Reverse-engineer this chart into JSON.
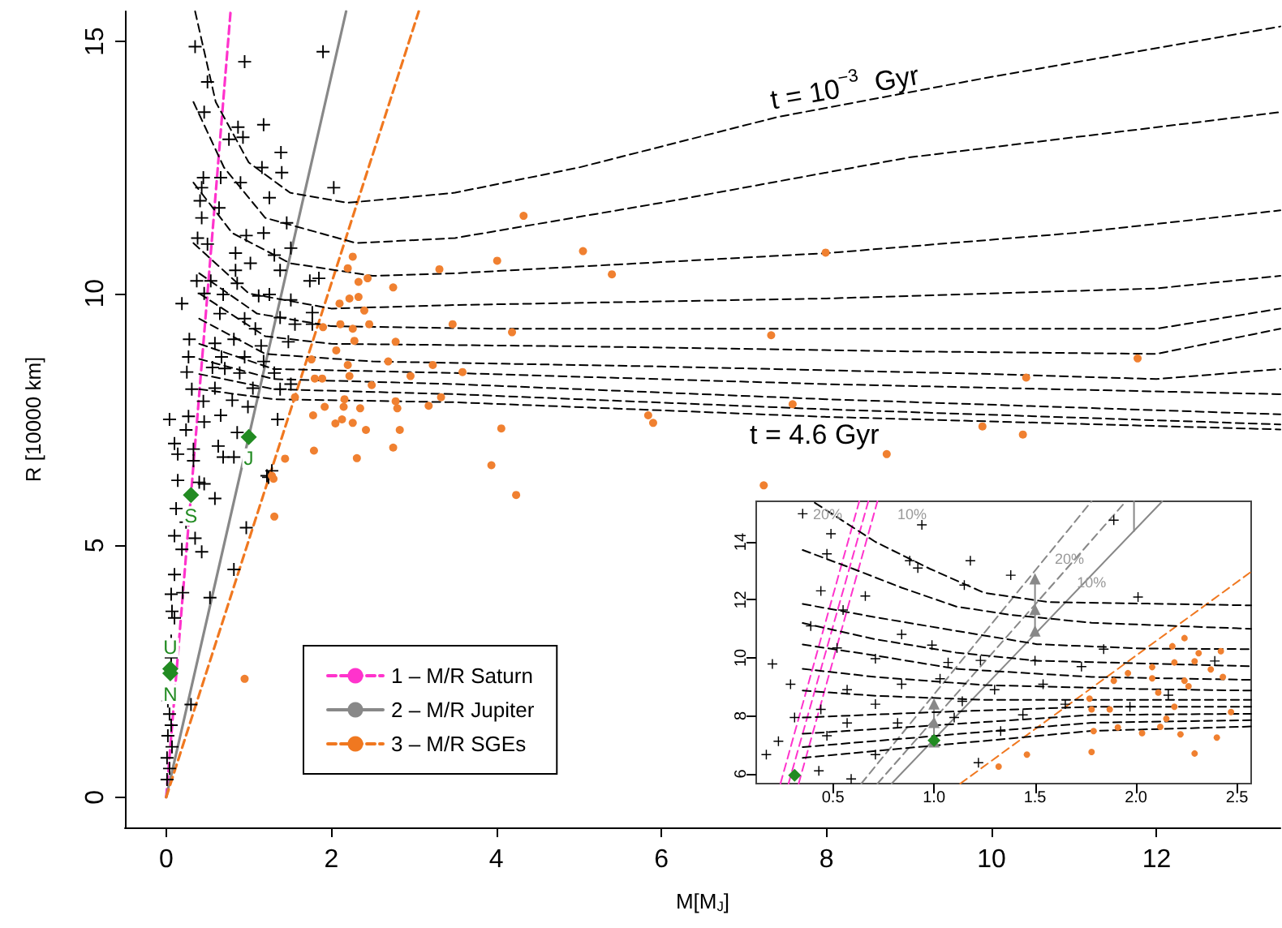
{
  "chart_data": [
    {
      "type": "scatter",
      "xlabel": "M[M$_{J}$]",
      "ylabel": "R [10000 km]",
      "xlim": [
        -0.5,
        13.5
      ],
      "ylim": [
        -0.6,
        15.6
      ],
      "xticks": [
        0,
        2,
        4,
        6,
        8,
        10,
        12
      ],
      "yticks": [
        0,
        5,
        10,
        15
      ],
      "legend": "bottom left",
      "annotations": [
        "t = 10$^{−3}$  Gyr",
        "t = 4.6 Gyr"
      ],
      "series": [
        {
          "color": "#000000",
          "marker": "cross",
          "x": [
            0.35,
            0.95,
            0.5,
            1.9,
            0.46,
            0.87,
            1.18,
            0.76,
            0.93,
            1.39,
            1.16,
            1.4,
            0.45,
            0.9,
            0.43,
            0.66,
            2.03,
            0.41,
            1.25,
            0.64,
            0.43,
            1.46,
            0.97,
            1.18,
            0.38,
            0.5,
            0.84,
            1.31,
            1.51,
            1.02,
            0.84,
            1.38,
            1.74,
            1.85,
            0.37,
            0.54,
            0.86,
            0.19,
            0.46,
            0.69,
            1.12,
            1.25,
            1.51,
            0.65,
            0.95,
            1.08,
            1.38,
            1.56,
            1.77,
            1.77,
            0.28,
            0.59,
            0.82,
            1.15,
            1.48,
            0.27,
            0.67,
            0.95,
            1.18,
            0.25,
            0.56,
            0.71,
            0.89,
            1.31,
            1.51,
            0.31,
            0.59,
            1.05,
            1.38,
            0.45,
            0.8,
            0.99,
            0.04,
            0.27,
            0.66,
            0.46,
            1.35,
            0.24,
            0.86,
            0.1,
            0.33,
            0.63,
            0.69,
            0.82,
            0.14,
            1.22,
            0.14,
            0.4,
            0.33,
            0.46,
            0.59,
            0.12,
            0.24,
            0.35,
            0.1,
            0.43,
            0.19,
            0.1,
            0.06,
            0.2,
            0.53,
            0.07,
            0.1,
            0.06,
            0.97,
            0.82,
            0.06,
            0.02,
            0.04,
            0.06,
            0.02,
            0.07,
            0.01,
            0.04,
            0.01,
            0.3,
            1.28,
            1.24
          ],
          "values": [
            14.9,
            14.6,
            14.2,
            14.8,
            13.6,
            13.3,
            13.35,
            13.06,
            13.1,
            12.8,
            12.5,
            12.4,
            12.3,
            12.2,
            12.1,
            12.3,
            12.1,
            11.84,
            11.9,
            11.7,
            11.5,
            11.4,
            11.15,
            11.2,
            11.1,
            10.98,
            10.8,
            10.76,
            10.9,
            10.6,
            10.46,
            10.46,
            10.25,
            10.3,
            10.25,
            10.25,
            10.2,
            9.8,
            10.0,
            9.98,
            9.95,
            9.98,
            9.87,
            9.6,
            9.5,
            9.3,
            9.52,
            9.39,
            9.62,
            9.39,
            9.09,
            9.01,
            9.09,
            8.96,
            9.04,
            8.74,
            8.74,
            8.74,
            8.65,
            8.44,
            8.53,
            8.51,
            8.42,
            8.42,
            8.2,
            8.1,
            8.12,
            8.12,
            8.1,
            7.86,
            7.88,
            7.75,
            7.5,
            7.56,
            7.58,
            7.45,
            7.5,
            7.29,
            7.24,
            7.02,
            6.91,
            6.97,
            6.75,
            6.75,
            6.81,
            6.38,
            6.29,
            6.25,
            6.68,
            6.22,
            5.93,
            5.73,
            5.46,
            5.14,
            5.19,
            4.87,
            4.92,
            4.42,
            4.03,
            4.06,
            3.96,
            3.69,
            3.56,
            3.1,
            5.35,
            4.52,
            2.77,
            1.91,
            1.65,
            1.43,
            1.22,
            1.0,
            0.78,
            0.57,
            0.35,
            1.84,
            6.48,
            6.35
          ]
        },
        {
          "color": "#f08030",
          "marker": "circle",
          "x": [
            2.26,
            2.2,
            3.31,
            2.33,
            2.44,
            2.75,
            2.1,
            2.22,
            2.33,
            2.4,
            1.9,
            2.11,
            2.26,
            2.46,
            2.28,
            2.78,
            3.47,
            2.06,
            1.76,
            2.2,
            2.69,
            3.23,
            3.59,
            1.8,
            1.89,
            2.22,
            2.49,
            2.96,
            2.16,
            2.78,
            3.33,
            1.56,
            1.92,
            2.15,
            2.35,
            2.8,
            3.18,
            1.78,
            2.13,
            2.05,
            2.26,
            2.42,
            2.83,
            1.79,
            2.31,
            2.75,
            1.44,
            1.28,
            1.31,
            0.95,
            1.3,
            4.33,
            4.01,
            5.05,
            5.4,
            7.99,
            4.19,
            7.33,
            11.77,
            10.42,
            7.59,
            5.84,
            5.9,
            4.06,
            9.89,
            10.38,
            8.73,
            3.94,
            4.24,
            7.24
          ],
          "values": [
            10.73,
            10.5,
            10.48,
            10.23,
            10.3,
            10.12,
            9.8,
            9.9,
            9.93,
            9.66,
            9.33,
            9.39,
            9.3,
            9.39,
            9.06,
            9.04,
            9.39,
            8.87,
            8.69,
            8.58,
            8.65,
            8.58,
            8.44,
            8.31,
            8.31,
            8.36,
            8.18,
            8.36,
            7.9,
            7.86,
            7.94,
            7.94,
            7.75,
            7.75,
            7.72,
            7.72,
            7.77,
            7.58,
            7.5,
            7.42,
            7.43,
            7.29,
            7.29,
            6.88,
            6.73,
            6.94,
            6.72,
            6.38,
            5.57,
            2.35,
            6.32,
            11.54,
            10.65,
            10.84,
            10.38,
            10.81,
            9.23,
            9.17,
            8.71,
            8.33,
            7.8,
            7.58,
            7.43,
            7.32,
            7.36,
            7.2,
            6.81,
            6.59,
            6.0,
            6.19
          ]
        },
        {
          "color": "#228b22",
          "marker": "diamond",
          "x": [
            0.05,
            0.05,
            0.3,
            1.0
          ],
          "values": [
            2.55,
            2.46,
            6.0,
            7.15
          ],
          "value_labels": [
            "U",
            "N",
            "S",
            "J"
          ]
        },
        {
          "type": "line",
          "name": "1 – M/R Saturn",
          "color": "#ff33cc",
          "line_style": "dashed",
          "x": [
            0,
            0.78
          ],
          "values": [
            0,
            15.6
          ]
        },
        {
          "type": "line",
          "name": "2 – M/R Jupiter",
          "color": "#888888",
          "line_style": "solid",
          "x": [
            0,
            2.18
          ],
          "values": [
            0,
            15.6
          ]
        },
        {
          "type": "line",
          "name": "3 – M/R SGEs",
          "color": "#f07820",
          "line_style": "dashed",
          "x": [
            0,
            3.06
          ],
          "values": [
            0,
            15.6
          ]
        },
        {
          "type": "line",
          "color": "#000000",
          "line_style": "dashed",
          "x": [
            0.35,
            0.6,
            1.0,
            1.5,
            2.2,
            3.5,
            5,
            7.4,
            10,
            13.5
          ],
          "values": [
            15.6,
            13.8,
            12.6,
            12.0,
            11.8,
            12.0,
            12.5,
            13.5,
            14.3,
            15.3
          ]
        },
        {
          "type": "line",
          "color": "#000000",
          "line_style": "dashed",
          "x": [
            0.33,
            0.7,
            1.2,
            2.3,
            3.5,
            6,
            9,
            13.5
          ],
          "values": [
            13.8,
            12.5,
            11.5,
            11.0,
            11.1,
            11.8,
            12.7,
            13.6
          ]
        },
        {
          "type": "line",
          "color": "#000000",
          "line_style": "dashed",
          "x": [
            0.33,
            0.8,
            1.5,
            2.5,
            3.5,
            8,
            11,
            13.5
          ],
          "values": [
            12.2,
            11.2,
            10.6,
            10.35,
            10.4,
            10.8,
            11.2,
            11.65
          ]
        },
        {
          "type": "line",
          "color": "#000000",
          "line_style": "dashed",
          "x": [
            0.33,
            1.0,
            2,
            3.5,
            8,
            12,
            13.5
          ],
          "values": [
            11.0,
            10.0,
            9.7,
            9.77,
            9.9,
            10.1,
            10.35
          ]
        },
        {
          "type": "line",
          "color": "#000000",
          "line_style": "dashed",
          "x": [
            0.4,
            1.1,
            2,
            4,
            8,
            12,
            13.5
          ],
          "values": [
            10.4,
            9.6,
            9.35,
            9.3,
            9.3,
            9.3,
            9.7
          ]
        },
        {
          "type": "line",
          "color": "#000000",
          "line_style": "dashed",
          "x": [
            0.4,
            1.2,
            2,
            5,
            9,
            12,
            13.5
          ],
          "values": [
            10.0,
            9.15,
            9.0,
            8.95,
            8.85,
            8.8,
            9.3
          ]
        },
        {
          "type": "line",
          "color": "#000000",
          "line_style": "dashed",
          "x": [
            0.4,
            1.2,
            2.5,
            6,
            10,
            12,
            13.5
          ],
          "values": [
            9.5,
            8.8,
            8.65,
            8.55,
            8.4,
            8.3,
            8.5
          ]
        },
        {
          "type": "line",
          "color": "#000000",
          "line_style": "dashed",
          "x": [
            0.4,
            1.3,
            3.5,
            8,
            13.5
          ],
          "values": [
            9.0,
            8.5,
            8.42,
            8.2,
            8.0
          ]
        },
        {
          "type": "line",
          "color": "#000000",
          "line_style": "dashed",
          "x": [
            0.4,
            1.3,
            3.5,
            8,
            13.5
          ],
          "values": [
            8.7,
            8.3,
            8.2,
            7.9,
            7.6
          ]
        },
        {
          "type": "line",
          "color": "#000000",
          "line_style": "dashed",
          "x": [
            0.4,
            1.3,
            3.5,
            8,
            13.5
          ],
          "values": [
            8.4,
            8.1,
            8.0,
            7.7,
            7.4
          ]
        },
        {
          "type": "line",
          "color": "#000000",
          "line_style": "dashed",
          "x": [
            0.4,
            1.3,
            3.5,
            8,
            13.5
          ],
          "values": [
            8.1,
            7.9,
            7.84,
            7.55,
            7.3
          ]
        }
      ]
    },
    {
      "type": "scatter",
      "xlim": [
        0.12,
        2.57
      ],
      "ylim": [
        5.66,
        15.4
      ],
      "xticks": [
        0.5,
        {
          "value": 1,
          "label": "1.0"
        },
        1.5,
        {
          "value": 2,
          "label": "2.0"
        },
        2.5
      ],
      "yticks": [
        6,
        8,
        10,
        12,
        14
      ],
      "annotations": [
        {
          "text": "20%",
          "x": 1.67,
          "y": 13.4
        },
        {
          "text": "10%",
          "x": 1.78,
          "y": 12.6
        },
        "20%",
        "10%"
      ],
      "series": [
        {
          "color": "#000000",
          "marker": "cross",
          "x": [
            0.35,
            0.94,
            0.49,
            0.47,
            0.88,
            0.92,
            1.18,
            1.38,
            1.15,
            2.01,
            1.89,
            0.44,
            0.55,
            0.39,
            0.66,
            0.84,
            0.99,
            0.52,
            0.71,
            1.07,
            1.23,
            0.2,
            1.73,
            1.84,
            1.5,
            0.29,
            0.84,
            1.03,
            1.3,
            0.57,
            1.54,
            0.44,
            0.71,
            1.14,
            1.44,
            0.31,
            0.57,
            0.82,
            1.33,
            0.23,
            0.47,
            0.71,
            0.17,
            0.43,
            0.59,
            1.22,
            1.97,
            1.65,
            2.16,
            2.39,
            1.1
          ],
          "values": [
            14.97,
            14.59,
            14.28,
            13.59,
            13.35,
            13.1,
            13.35,
            12.85,
            12.51,
            12.1,
            14.75,
            12.31,
            11.65,
            11.1,
            12.13,
            10.81,
            10.44,
            10.34,
            9.97,
            9.84,
            9.91,
            9.79,
            9.7,
            10.3,
            9.9,
            9.09,
            9.09,
            9.28,
            8.9,
            8.9,
            9.09,
            8.22,
            8.4,
            8.5,
            8.03,
            7.94,
            7.75,
            7.75,
            7.47,
            7.12,
            7.31,
            6.66,
            6.66,
            6.1,
            5.82,
            6.38,
            8.31,
            8.4,
            8.71,
            9.89,
            7.94
          ]
        },
        {
          "color": "#f08030",
          "marker": "circle",
          "x": [
            1.32,
            1.46,
            1.77,
            1.79,
            1.78,
            1.78,
            1.87,
            1.89,
            1.91,
            1.96,
            2.03,
            2.08,
            2.08,
            2.12,
            2.11,
            2.15,
            2.18,
            2.19,
            2.19,
            2.22,
            2.24,
            2.24,
            2.26,
            2.29,
            2.29,
            2.31,
            2.37,
            2.4,
            2.42,
            2.43,
            2.47
          ],
          "values": [
            6.25,
            6.66,
            8.59,
            7.47,
            8.22,
            6.75,
            8.22,
            9.21,
            7.6,
            9.47,
            7.4,
            9.68,
            9.29,
            7.62,
            8.8,
            7.9,
            10.4,
            9.84,
            8.31,
            7.36,
            10.68,
            9.21,
            9.02,
            6.7,
            9.88,
            10.16,
            9.6,
            7.25,
            10.23,
            9.34,
            8.13
          ]
        },
        {
          "color": "#228b22",
          "marker": "diamond",
          "x": [
            0.31,
            1.0
          ],
          "values": [
            5.95,
            7.15
          ]
        },
        {
          "type": "line",
          "color": "#ff33cc",
          "line_style": "dashed",
          "x": [
            0.24,
            0.63
          ],
          "values": [
            5.66,
            15.4
          ]
        },
        {
          "type": "line",
          "color": "#ff33cc",
          "line_style": "dashed",
          "x": [
            0.28,
            0.675
          ],
          "values": [
            5.66,
            15.4
          ]
        },
        {
          "type": "line",
          "color": "#ff33cc",
          "line_style": "dashed",
          "x": [
            0.33,
            0.72
          ],
          "values": [
            5.66,
            15.4
          ]
        },
        {
          "type": "line",
          "color": "#888888",
          "line_style": "solid",
          "x": [
            0.79,
            2.13
          ],
          "values": [
            5.66,
            15.4
          ]
        },
        {
          "type": "line",
          "color": "#888888",
          "line_style": "dashed",
          "x": [
            0.64,
            1.78
          ],
          "values": [
            5.66,
            15.4
          ]
        },
        {
          "type": "line",
          "color": "#888888",
          "line_style": "dashed",
          "x": [
            0.72,
            1.95
          ],
          "values": [
            5.66,
            15.4
          ]
        },
        {
          "type": "line",
          "color": "#888888",
          "line_style": "solid",
          "x": [
            1.99,
            1.99
          ],
          "values": [
            14.37,
            15.4
          ]
        },
        {
          "type": "line",
          "color": "#888888",
          "line_style": "solid",
          "marker": "triangle",
          "x": [
            1.0,
            1.0,
            1.0
          ],
          "values": [
            7.1,
            7.77,
            8.41
          ]
        },
        {
          "type": "line",
          "color": "#888888",
          "line_style": "solid",
          "marker": "triangle",
          "x": [
            1.5,
            1.5,
            1.5
          ],
          "values": [
            10.93,
            11.67,
            12.73
          ]
        },
        {
          "type": "line",
          "color": "#f07820",
          "line_style": "dashed",
          "x": [
            1.13,
            2.57
          ],
          "values": [
            5.66,
            12.97
          ]
        },
        {
          "type": "line",
          "color": "#000000",
          "line_style": "dashed",
          "x": [
            0.41,
            0.71,
            0.98,
            1.25,
            1.57,
            2.06,
            2.57
          ],
          "values": [
            15.35,
            14.0,
            13.07,
            12.24,
            11.92,
            11.87,
            11.81
          ]
        },
        {
          "type": "line",
          "color": "#000000",
          "line_style": "dashed",
          "x": [
            0.35,
            0.6,
            0.84,
            1.11,
            1.37,
            1.78,
            2.57
          ],
          "values": [
            13.72,
            13.07,
            12.42,
            11.77,
            11.49,
            11.21,
            11.0
          ]
        },
        {
          "type": "line",
          "color": "#000000",
          "line_style": "dashed",
          "x": [
            0.35,
            0.71,
            1.11,
            1.51,
            2.04,
            2.57
          ],
          "values": [
            11.86,
            11.4,
            10.93,
            10.47,
            10.32,
            10.3
          ]
        },
        {
          "type": "line",
          "color": "#000000",
          "line_style": "dashed",
          "x": [
            0.35,
            0.71,
            1.11,
            1.51,
            2.57
          ],
          "values": [
            11.2,
            10.64,
            10.18,
            9.9,
            9.71
          ]
        },
        {
          "type": "line",
          "color": "#000000",
          "line_style": "dashed",
          "x": [
            0.35,
            0.71,
            1.11,
            1.78,
            2.57
          ],
          "values": [
            10.46,
            10.08,
            9.62,
            9.34,
            9.24
          ]
        },
        {
          "type": "line",
          "color": "#000000",
          "line_style": "dashed",
          "x": [
            0.35,
            0.71,
            1.25,
            2.04,
            2.57
          ],
          "values": [
            9.62,
            9.34,
            9.06,
            8.92,
            8.87
          ]
        },
        {
          "type": "line",
          "color": "#000000",
          "line_style": "dashed",
          "x": [
            0.35,
            0.71,
            1.25,
            2.57
          ],
          "values": [
            8.87,
            8.69,
            8.55,
            8.55
          ]
        },
        {
          "type": "line",
          "color": "#000000",
          "line_style": "dashed",
          "x": [
            0.35,
            0.98,
            1.78,
            2.57
          ],
          "values": [
            7.94,
            8.12,
            8.31,
            8.31
          ]
        },
        {
          "type": "line",
          "color": "#000000",
          "line_style": "dashed",
          "x": [
            0.35,
            0.98,
            1.78,
            2.57
          ],
          "values": [
            7.38,
            7.66,
            8.03,
            8.07
          ]
        },
        {
          "type": "line",
          "color": "#000000",
          "line_style": "dashed",
          "x": [
            0.35,
            0.98,
            1.78,
            2.57
          ],
          "values": [
            6.92,
            7.29,
            7.76,
            7.85
          ]
        },
        {
          "type": "line",
          "color": "#000000",
          "line_style": "dashed",
          "x": [
            0.35,
            0.98,
            1.78,
            2.57
          ],
          "values": [
            6.55,
            6.96,
            7.48,
            7.63
          ]
        }
      ]
    }
  ]
}
